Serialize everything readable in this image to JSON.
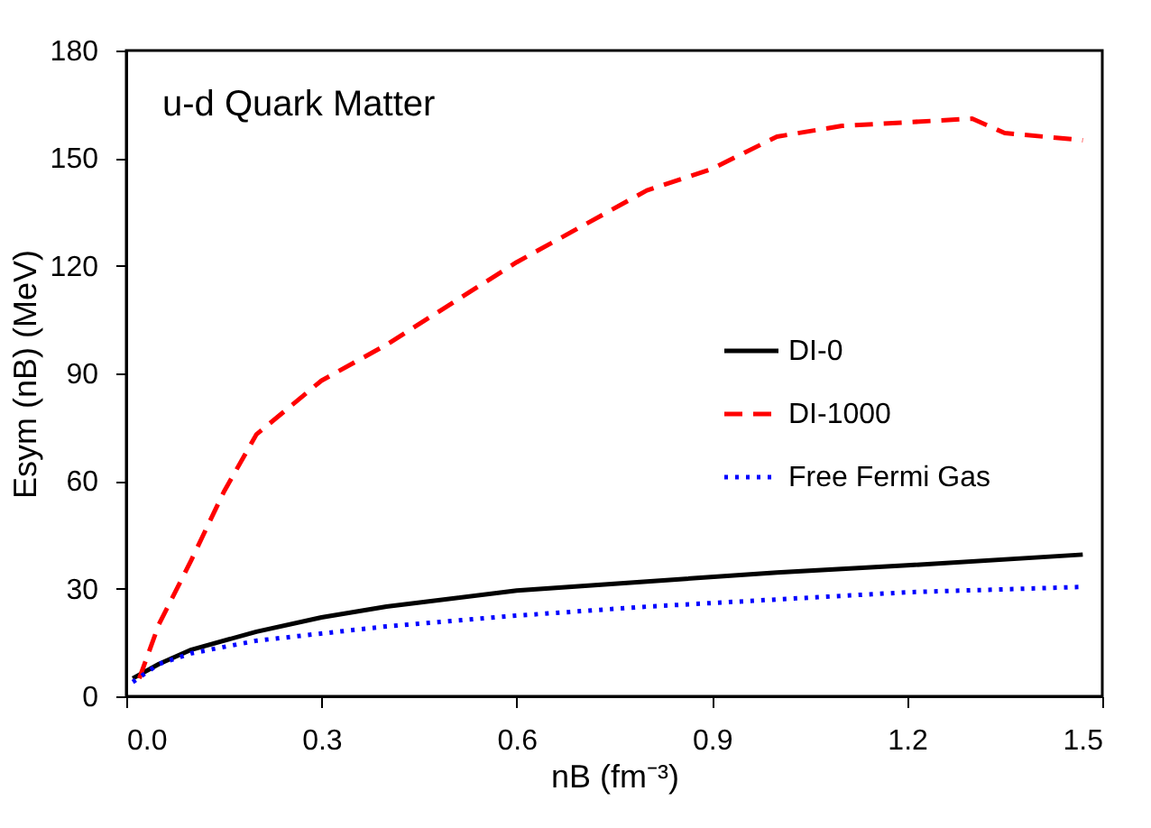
{
  "chart_data": {
    "type": "line",
    "xlabel": "nB (fm⁻³)",
    "ylabel": "Esym (nB) (MeV)",
    "annotations": [
      "u-d Quark Matter"
    ],
    "xlim": [
      0,
      1.5
    ],
    "ylim": [
      0,
      180
    ],
    "xticks": [
      {
        "value": 0,
        "label": "0.0"
      },
      {
        "value": 0.3,
        "label": "0.3"
      },
      {
        "value": 0.6,
        "label": "0.6"
      },
      {
        "value": 0.9,
        "label": "0.9"
      },
      {
        "value": 1.2,
        "label": "1.2"
      },
      {
        "value": 1.5,
        "label": "1.5"
      }
    ],
    "yticks": [
      0,
      30,
      60,
      90,
      120,
      150,
      180
    ],
    "grid": false,
    "legend": "right",
    "marker": "none",
    "series": [
      {
        "name": "DI-0",
        "color": "#000000",
        "line_style": "solid",
        "x": [
          0.01,
          0.05,
          0.1,
          0.2,
          0.3,
          0.4,
          0.6,
          0.8,
          1.0,
          1.2,
          1.47
        ],
        "values": [
          5,
          9,
          13,
          18,
          22,
          25,
          29.5,
          32,
          34.5,
          36.5,
          39.5
        ]
      },
      {
        "name": "DI-1000",
        "color": "#ff0000",
        "line_style": "dashed",
        "x": [
          0.02,
          0.05,
          0.1,
          0.15,
          0.2,
          0.3,
          0.4,
          0.6,
          0.8,
          0.9,
          1.0,
          1.1,
          1.2,
          1.3,
          1.35,
          1.47
        ],
        "values": [
          5,
          20,
          38,
          57,
          73,
          88,
          98,
          121,
          141,
          147,
          156,
          159,
          160,
          161,
          157,
          155
        ]
      },
      {
        "name": "Free Fermi Gas",
        "color": "#0000ff",
        "line_style": "dotted",
        "x": [
          0.01,
          0.05,
          0.1,
          0.2,
          0.4,
          0.6,
          0.8,
          1.0,
          1.2,
          1.47
        ],
        "values": [
          4,
          9,
          12,
          15.5,
          19.5,
          22.5,
          25,
          27,
          29,
          30.5
        ]
      }
    ]
  }
}
